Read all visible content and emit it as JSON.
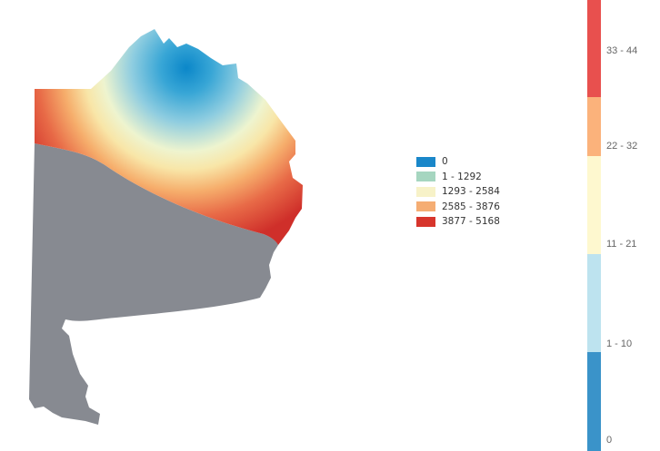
{
  "map": {
    "regions": [
      {
        "name": "heat-region",
        "fill": "gradient"
      },
      {
        "name": "south-region",
        "fill": "#878a91"
      }
    ],
    "gradient_colors": [
      "#0b87c9",
      "#38a6d6",
      "#8fcde0",
      "#eef4cf",
      "#f8e6a8",
      "#f6ae6c",
      "#e86a47",
      "#cf2f2a"
    ]
  },
  "legend": {
    "items": [
      {
        "label": "0",
        "color": "#1a87c9"
      },
      {
        "label": "1 - 1292",
        "color": "#a6d6c0"
      },
      {
        "label": "1293 - 2584",
        "color": "#f7f2c8"
      },
      {
        "label": "2585 - 3876",
        "color": "#f5ad73"
      },
      {
        "label": "3877 - 5168",
        "color": "#d7352c"
      }
    ]
  },
  "scale": {
    "segments": [
      {
        "label": "33 - 44",
        "color": "#e8504e"
      },
      {
        "label": "22 - 32",
        "color": "#fbb27b"
      },
      {
        "label": "11 - 21",
        "color": "#fef8cf"
      },
      {
        "label": "1 - 10",
        "color": "#bde3ef"
      },
      {
        "label": "0",
        "color": "#3a93c9"
      }
    ]
  }
}
